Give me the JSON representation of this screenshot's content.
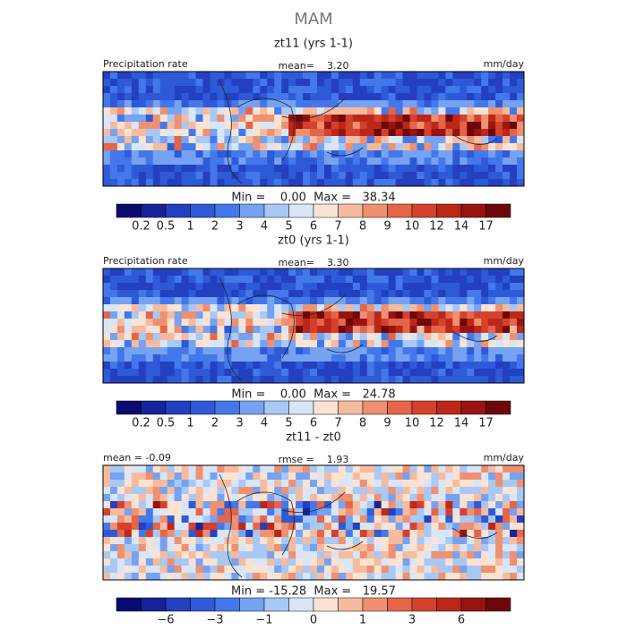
{
  "title": "MAM",
  "panels": [
    {
      "title": "zt11 (yrs 1-1)",
      "left_label": "Precipitation rate",
      "center_label": "mean=    3.20",
      "right_label": "mm/day",
      "minmax": "Min =    0.00  Max =   38.34",
      "colorbar": {
        "colors": [
          "#0a0a70",
          "#16239a",
          "#2240c0",
          "#2e5ad8",
          "#4478ea",
          "#76a2f2",
          "#a8c8f6",
          "#d8e6f8",
          "#fbe3d3",
          "#f6bb9e",
          "#ef9070",
          "#e4654a",
          "#d4422e",
          "#bc2818",
          "#981410",
          "#6e0808"
        ],
        "labels": [
          "0.2",
          "0.5",
          "1",
          "2",
          "3",
          "4",
          "5",
          "6",
          "7",
          "8",
          "9",
          "10",
          "12",
          "14",
          "17"
        ]
      }
    },
    {
      "title": "zt0 (yrs 1-1)",
      "left_label": "Precipitation rate",
      "center_label": "mean=    3.30",
      "right_label": "mm/day",
      "minmax": "Min =    0.00  Max =   24.78",
      "colorbar": {
        "colors": [
          "#0a0a70",
          "#16239a",
          "#2240c0",
          "#2e5ad8",
          "#4478ea",
          "#76a2f2",
          "#a8c8f6",
          "#d8e6f8",
          "#fbe3d3",
          "#f6bb9e",
          "#ef9070",
          "#e4654a",
          "#d4422e",
          "#bc2818",
          "#981410",
          "#6e0808"
        ],
        "labels": [
          "0.2",
          "0.5",
          "1",
          "2",
          "3",
          "4",
          "5",
          "6",
          "7",
          "8",
          "9",
          "10",
          "12",
          "14",
          "17"
        ]
      }
    },
    {
      "title": "zt11 - zt0",
      "left_label": "mean =  -0.09",
      "center_label": "rmse =    1.93",
      "right_label": "mm/day",
      "minmax": "Min = -15.28  Max =   19.57",
      "colorbar": {
        "colors": [
          "#0a0a70",
          "#16239a",
          "#2240c0",
          "#2e5ad8",
          "#4478ea",
          "#76a2f2",
          "#a8c8f6",
          "#d8e6f8",
          "#fbe3d3",
          "#f6bb9e",
          "#ef9070",
          "#e4654a",
          "#d4422e",
          "#bc2818",
          "#981410",
          "#6e0808"
        ],
        "labels": [
          null,
          "−6",
          null,
          "−3",
          null,
          "−1",
          null,
          "0",
          null,
          "1",
          null,
          "3",
          null,
          "6",
          null
        ]
      }
    }
  ]
}
